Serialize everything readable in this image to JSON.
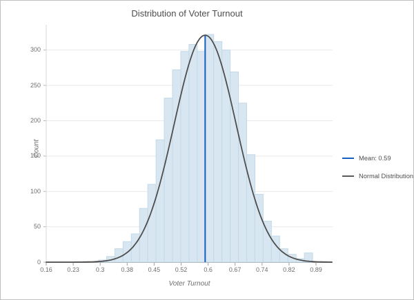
{
  "window": {
    "background": "#ffffff",
    "border_color": "#c0c0c0"
  },
  "chart_data": {
    "type": "histogram",
    "title": "Distribution of Voter Turnout",
    "xlabel": "Voter Turnout",
    "ylabel": "Count",
    "x_tick_labels": [
      "0.16",
      "0.23",
      "0.3",
      "0.38",
      "0.45",
      "0.52",
      "0.6",
      "0.67",
      "0.74",
      "0.82",
      "0.89"
    ],
    "y_ticks": [
      0,
      50,
      100,
      150,
      200,
      250,
      300
    ],
    "xlim": [
      0.16,
      0.934
    ],
    "ylim": [
      0,
      326
    ],
    "grid": "horizontal-only",
    "bins": {
      "start": 0.301,
      "width": 0.0223,
      "counts": [
        3,
        8,
        19,
        29,
        40,
        76,
        110,
        173,
        232,
        272,
        298,
        308,
        298,
        322,
        312,
        300,
        269,
        225,
        152,
        96,
        58,
        37,
        19,
        11,
        5,
        13
      ]
    },
    "normal_curve": {
      "mean": 0.59,
      "sigma": 0.084,
      "peak_count": 321
    },
    "mean_line": {
      "value": 0.59,
      "label": "Mean: 0.59"
    },
    "legend": [
      {
        "label": "Mean: 0.59",
        "color": "#155fbe",
        "name": "mean"
      },
      {
        "label": "Normal Distribution",
        "color": "#595959",
        "name": "normal-distribution"
      }
    ],
    "colors": {
      "bar_fill": "#d7e6f0",
      "bar_border": "#c3d9e8",
      "curve": "#4d4d4d",
      "mean_line": "#155fbe",
      "gridline": "#e9e9e9",
      "x_axis": "#9e9e9e",
      "y_axis": "#d9d9d9",
      "tick": "#b5b5b5"
    }
  }
}
